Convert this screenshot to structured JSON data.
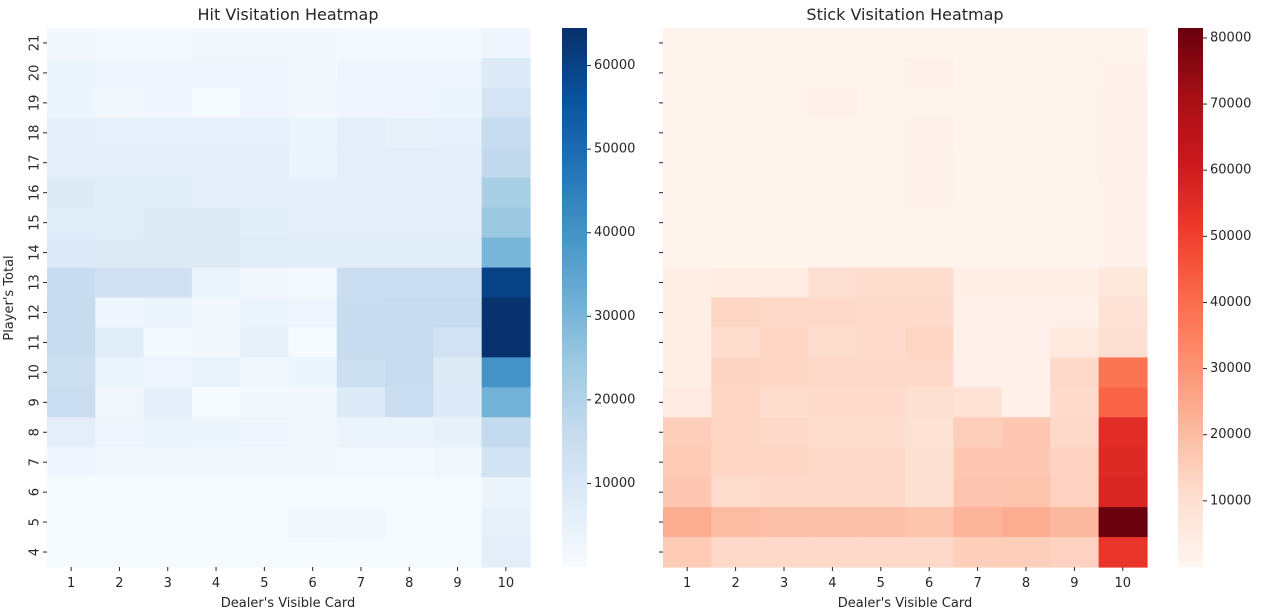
{
  "chart_data": [
    {
      "type": "heatmap",
      "title": "Hit Visitation Heatmap",
      "xlabel": "Dealer's Visible Card",
      "ylabel": "Player's Total",
      "colormap": "Blues",
      "x": [
        "1",
        "2",
        "3",
        "4",
        "5",
        "6",
        "7",
        "8",
        "9",
        "10"
      ],
      "y": [
        "21",
        "20",
        "19",
        "18",
        "17",
        "16",
        "15",
        "14",
        "13",
        "12",
        "11",
        "10",
        "9",
        "8",
        "7",
        "6",
        "5",
        "4"
      ],
      "colorbar": {
        "min": 0,
        "max": 64500,
        "ticks": [
          10000,
          20000,
          30000,
          40000,
          50000,
          60000
        ],
        "tick_labels": [
          "10000",
          "20000",
          "30000",
          "40000",
          "50000",
          "60000"
        ]
      },
      "values": [
        [
          1500,
          1200,
          1200,
          1500,
          1500,
          1500,
          1200,
          1200,
          1200,
          2500
        ],
        [
          3500,
          3000,
          3000,
          2500,
          2500,
          1500,
          3000,
          3000,
          3000,
          8500
        ],
        [
          3500,
          2000,
          2500,
          500,
          3000,
          2000,
          3000,
          3000,
          3500,
          11500
        ],
        [
          6000,
          5500,
          5500,
          5500,
          5500,
          4000,
          6000,
          5000,
          5500,
          15500
        ],
        [
          6000,
          6500,
          6000,
          6000,
          6000,
          4000,
          6500,
          6500,
          6500,
          17000
        ],
        [
          8000,
          7000,
          7000,
          6500,
          6500,
          6000,
          6500,
          6500,
          6500,
          22000
        ],
        [
          7500,
          7500,
          8000,
          8000,
          7000,
          6500,
          6500,
          6500,
          6500,
          24500
        ],
        [
          8500,
          8000,
          8000,
          8000,
          7500,
          7000,
          7000,
          7000,
          7000,
          30000
        ],
        [
          15000,
          13000,
          13000,
          4000,
          2000,
          1000,
          14500,
          14500,
          14500,
          60000
        ],
        [
          15500,
          3000,
          4000,
          2000,
          4000,
          3000,
          15000,
          15500,
          15500,
          64000
        ],
        [
          15500,
          7000,
          1000,
          2000,
          5000,
          500,
          15000,
          15500,
          12500,
          64000
        ],
        [
          14000,
          4000,
          3000,
          4500,
          2000,
          3500,
          14000,
          15500,
          8000,
          40000
        ],
        [
          14500,
          2000,
          6000,
          500,
          1500,
          1500,
          8500,
          14500,
          8500,
          31000
        ],
        [
          6500,
          3000,
          4000,
          3500,
          3000,
          2000,
          4000,
          4000,
          5000,
          16500
        ],
        [
          2500,
          1500,
          1500,
          1500,
          1500,
          1500,
          1000,
          1000,
          2000,
          12000
        ],
        [
          500,
          500,
          500,
          500,
          500,
          500,
          500,
          500,
          500,
          4000
        ],
        [
          500,
          500,
          500,
          500,
          500,
          2000,
          1500,
          500,
          500,
          5000
        ],
        [
          500,
          500,
          500,
          500,
          500,
          500,
          500,
          500,
          500,
          6500
        ]
      ]
    },
    {
      "type": "heatmap",
      "title": "Stick Visitation Heatmap",
      "xlabel": "Dealer's Visible Card",
      "ylabel": "",
      "colormap": "Reds",
      "x": [
        "1",
        "2",
        "3",
        "4",
        "5",
        "6",
        "7",
        "8",
        "9",
        "10"
      ],
      "y": [
        "21",
        "20",
        "19",
        "18",
        "17",
        "16",
        "15",
        "14",
        "13",
        "12",
        "11",
        "10",
        "9",
        "8",
        "7",
        "6",
        "5",
        "4"
      ],
      "colorbar": {
        "min": 0,
        "max": 81500,
        "ticks": [
          10000,
          20000,
          30000,
          40000,
          50000,
          60000,
          70000,
          80000
        ],
        "tick_labels": [
          "10000",
          "20000",
          "30000",
          "40000",
          "50000",
          "60000",
          "70000",
          "80000"
        ]
      },
      "values": [
        [
          1000,
          1000,
          1000,
          1000,
          1000,
          1000,
          1000,
          1000,
          1000,
          1000
        ],
        [
          1000,
          1000,
          1000,
          1000,
          1000,
          2000,
          1000,
          1000,
          1000,
          1500
        ],
        [
          1000,
          1000,
          1000,
          2500,
          1000,
          1000,
          1000,
          1000,
          1000,
          2000
        ],
        [
          1000,
          1000,
          1000,
          1000,
          1000,
          2500,
          1000,
          1000,
          1000,
          2000
        ],
        [
          1000,
          1000,
          1000,
          1000,
          1000,
          1500,
          1000,
          1000,
          1000,
          2500
        ],
        [
          1000,
          1000,
          1000,
          1000,
          1000,
          1500,
          1000,
          1000,
          1000,
          1500
        ],
        [
          1000,
          1000,
          1000,
          1000,
          1000,
          1000,
          1000,
          1000,
          1000,
          1500
        ],
        [
          1000,
          1000,
          1000,
          1000,
          1000,
          1000,
          1000,
          1000,
          1000,
          1500
        ],
        [
          3000,
          4000,
          4500,
          10000,
          11000,
          11000,
          3000,
          3000,
          3000,
          7000
        ],
        [
          3000,
          13000,
          12000,
          12000,
          11500,
          11500,
          2500,
          2500,
          2500,
          9000
        ],
        [
          3000,
          11000,
          13000,
          11000,
          11500,
          13000,
          2000,
          2000,
          6000,
          10000
        ],
        [
          3000,
          13500,
          13000,
          12000,
          12000,
          12000,
          2500,
          2000,
          12000,
          38000
        ],
        [
          5000,
          13000,
          11000,
          11500,
          11500,
          10000,
          9000,
          2500,
          11500,
          42000
        ],
        [
          15000,
          13000,
          12000,
          11000,
          11000,
          9000,
          15000,
          17000,
          12000,
          55000
        ],
        [
          16000,
          13000,
          13000,
          12000,
          12000,
          10000,
          17000,
          17000,
          14000,
          56000
        ],
        [
          17000,
          11000,
          12000,
          12000,
          12000,
          10000,
          17500,
          18000,
          14000,
          57000
        ],
        [
          24000,
          20000,
          19000,
          19000,
          19000,
          18000,
          22000,
          24000,
          21000,
          81000
        ],
        [
          16000,
          12000,
          12000,
          12000,
          12000,
          12000,
          15000,
          15000,
          14000,
          53000
        ]
      ]
    }
  ]
}
